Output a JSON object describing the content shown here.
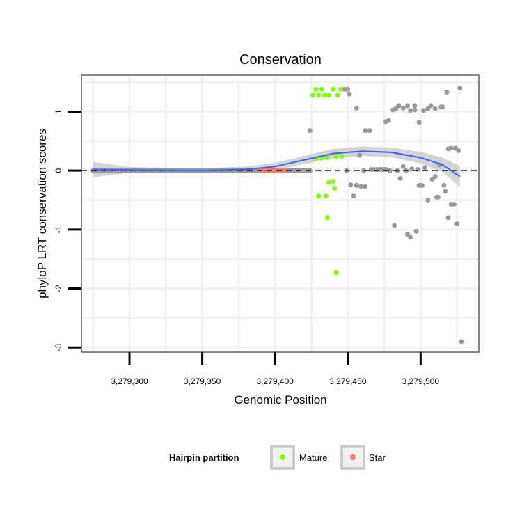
{
  "chart_data": {
    "type": "scatter",
    "title": "Conservation",
    "xlabel": "Genomic Position",
    "ylabel": "phyloP LRT conservation scores",
    "xlim": [
      3279267,
      3279540
    ],
    "ylim": [
      -3.08,
      1.62
    ],
    "x_ticks": [
      3279300,
      3279350,
      3279400,
      3279450,
      3279500
    ],
    "x_tick_labels": [
      "3,279,300",
      "3,279,350",
      "3,279,400",
      "3,279,450",
      "3,279,500"
    ],
    "y_ticks": [
      1,
      0,
      -1,
      -2,
      -3
    ],
    "y_tick_labels": [
      "1",
      "0",
      "-1",
      "-2",
      "-3"
    ],
    "reference_line": {
      "y": 0,
      "style": "dashed"
    },
    "legend": {
      "title": "Hairpin partition",
      "position": "bottom",
      "entries": [
        {
          "label": "Mature",
          "color": "#7fff00"
        },
        {
          "label": "Star",
          "color": "#f8766d"
        }
      ]
    },
    "colors": {
      "other": "#999999",
      "mature": "#7fff00",
      "star": "#f8766d",
      "smooth_line": "#3366ff",
      "ribbon": "#cccccc"
    },
    "baseline_points": {
      "x_start": 3279275,
      "x_end": 3279424,
      "y": 0
    },
    "star_range": [
      3279390,
      3279408
    ],
    "series": [
      {
        "name": "Mature",
        "points": [
          [
            3279426,
            1.28
          ],
          [
            3279428,
            1.38
          ],
          [
            3279430,
            1.28
          ],
          [
            3279432,
            1.38
          ],
          [
            3279434,
            1.28
          ],
          [
            3279437,
            1.28
          ],
          [
            3279440,
            1.38
          ],
          [
            3279443,
            1.28
          ],
          [
            3279445,
            1.38
          ],
          [
            3279447,
            1.38
          ],
          [
            3279428,
            0.2
          ],
          [
            3279432,
            0.22
          ],
          [
            3279436,
            0.22
          ],
          [
            3279442,
            0.24
          ],
          [
            3279446,
            0.24
          ],
          [
            3279430,
            -0.43
          ],
          [
            3279435,
            -0.43
          ],
          [
            3279437,
            -0.2
          ],
          [
            3279440,
            -0.18
          ],
          [
            3279441,
            -0.3
          ],
          [
            3279436,
            -0.8
          ],
          [
            3279442,
            -1.73
          ]
        ]
      },
      {
        "name": "Other",
        "points": [
          [
            3279424,
            0.68
          ],
          [
            3279448,
            1.38
          ],
          [
            3279450,
            1.38
          ],
          [
            3279451,
            1.3
          ],
          [
            3279456,
            1.06
          ],
          [
            3279449,
            0.0
          ],
          [
            3279452,
            -0.24
          ],
          [
            3279454,
            -0.43
          ],
          [
            3279456,
            -0.25
          ],
          [
            3279458,
            0.26
          ],
          [
            3279459,
            -0.27
          ],
          [
            3279461,
            0.0
          ],
          [
            3279462,
            -0.27
          ],
          [
            3279462,
            0.68
          ],
          [
            3279465,
            0.68
          ],
          [
            3279466,
            0.02
          ],
          [
            3279468,
            0.02
          ],
          [
            3279470,
            0.02
          ],
          [
            3279472,
            0.02
          ],
          [
            3279474,
            0.02
          ],
          [
            3279476,
            0.02
          ],
          [
            3279476,
            0.83
          ],
          [
            3279478,
            0.85
          ],
          [
            3279479,
            0.0
          ],
          [
            3279481,
            1.03
          ],
          [
            3279483,
            1.05
          ],
          [
            3279485,
            1.1
          ],
          [
            3279482,
            -0.93
          ],
          [
            3279484,
            0.0
          ],
          [
            3279486,
            -0.13
          ],
          [
            3279488,
            0.07
          ],
          [
            3279488,
            1.06
          ],
          [
            3279490,
            0.0
          ],
          [
            3279491,
            1.1
          ],
          [
            3279493,
            1.02
          ],
          [
            3279491,
            -1.08
          ],
          [
            3279493,
            -1.13
          ],
          [
            3279494,
            0.03
          ],
          [
            3279496,
            1.1
          ],
          [
            3279496,
            1.03
          ],
          [
            3279497,
            -1.03
          ],
          [
            3279498,
            0.02
          ],
          [
            3279499,
            0.82
          ],
          [
            3279499,
            -0.25
          ],
          [
            3279501,
            -0.25
          ],
          [
            3279502,
            1.02
          ],
          [
            3279503,
            0.05
          ],
          [
            3279505,
            -0.5
          ],
          [
            3279505,
            1.05
          ],
          [
            3279507,
            1.1
          ],
          [
            3279508,
            -0.15
          ],
          [
            3279510,
            -0.1
          ],
          [
            3279510,
            1.05
          ],
          [
            3279511,
            -0.45
          ],
          [
            3279512,
            -0.45
          ],
          [
            3279513,
            0.1
          ],
          [
            3279514,
            1.08
          ],
          [
            3279515,
            1.08
          ],
          [
            3279516,
            -0.25
          ],
          [
            3279517,
            -0.35
          ],
          [
            3279518,
            1.33
          ],
          [
            3279519,
            0.37
          ],
          [
            3279521,
            0.38
          ],
          [
            3279519,
            -0.8
          ],
          [
            3279521,
            -0.57
          ],
          [
            3279523,
            -0.57
          ],
          [
            3279524,
            0.38
          ],
          [
            3279525,
            -0.9
          ],
          [
            3279526,
            0.34
          ],
          [
            3279527,
            1.4
          ],
          [
            3279528,
            -2.9
          ]
        ]
      }
    ],
    "smooth": {
      "x": [
        3279275,
        3279300,
        3279350,
        3279380,
        3279400,
        3279420,
        3279440,
        3279460,
        3279480,
        3279500,
        3279515,
        3279527
      ],
      "y": [
        0.02,
        0.01,
        0.0,
        0.02,
        0.07,
        0.18,
        0.29,
        0.33,
        0.31,
        0.22,
        0.1,
        -0.1
      ],
      "se": [
        0.13,
        0.05,
        0.04,
        0.05,
        0.06,
        0.07,
        0.08,
        0.08,
        0.08,
        0.1,
        0.12,
        0.18
      ]
    }
  }
}
